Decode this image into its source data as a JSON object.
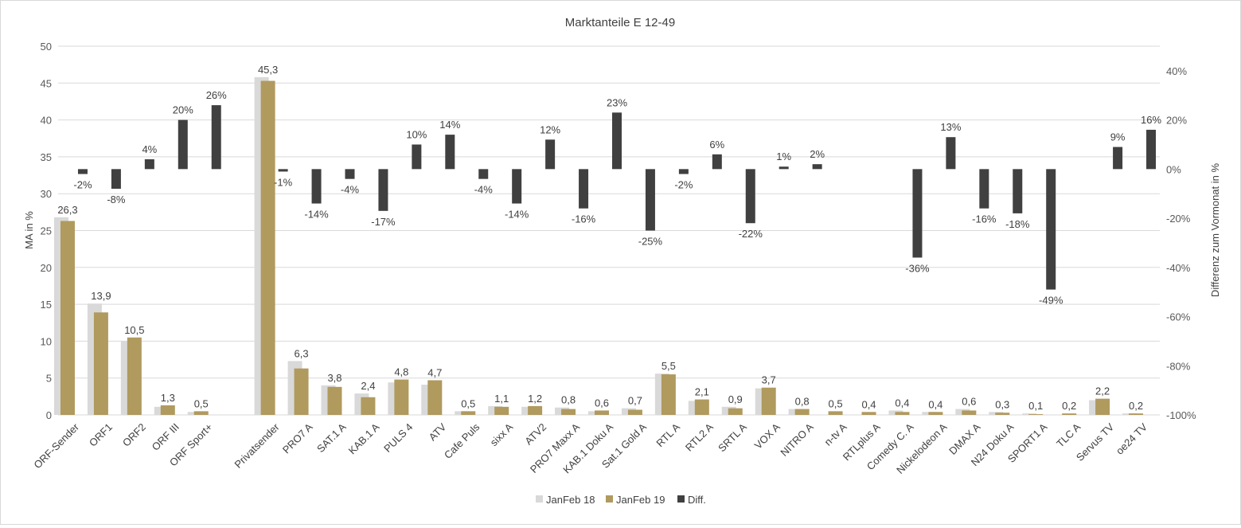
{
  "chart_data": {
    "type": "bar",
    "title": "Marktanteile E 12-49",
    "ylabel": "MA in %",
    "y2label": "Differenz zum Vormonat in %",
    "ylim": [
      0,
      50
    ],
    "yticks": [
      "0",
      "5",
      "10",
      "15",
      "20",
      "25",
      "30",
      "35",
      "40",
      "45",
      "50"
    ],
    "y2lim": [
      -100,
      50
    ],
    "y2ticks": [
      "-100%",
      "-80%",
      "-60%",
      "-40%",
      "-20%",
      "0%",
      "20%",
      "40%"
    ],
    "y2tick_values": [
      -100,
      -80,
      -60,
      -40,
      -20,
      0,
      20,
      40
    ],
    "legend_position": "bottom",
    "grid": true,
    "colors": {
      "JanFeb 18": "#d9d9d9",
      "JanFeb 19": "#b09a5e",
      "Diff.": "#404040"
    },
    "categories": [
      "ORF-Sender",
      "ORF1",
      "ORF2",
      "ORF III",
      "ORF Sport+",
      "",
      "Privatsender",
      "PRO7 A",
      "SAT.1 A",
      "KAB.1 A",
      "PULS 4",
      "ATV",
      "Cafe Puls",
      "sixx A",
      "ATV2",
      "PRO7 Maxx A",
      "KAB.1 Doku A",
      "Sat.1 Gold A",
      "RTL A",
      "RTL2 A",
      "SRTL A",
      "VOX A",
      "NITRO A",
      "n-tv A",
      "RTLplus A",
      "Comedy C. A",
      "Nickelodeon A",
      "DMAX A",
      "N24 Doku A",
      "SPORT1 A",
      "TLC A",
      "Servus TV",
      "oe24 TV"
    ],
    "series": [
      {
        "name": "JanFeb 18",
        "axis": "left",
        "values": [
          26.8,
          15.1,
          10.0,
          1.1,
          0.4,
          null,
          45.8,
          7.3,
          4.0,
          2.9,
          4.4,
          4.1,
          0.5,
          1.2,
          1.1,
          1.0,
          0.5,
          0.9,
          5.6,
          1.9,
          1.1,
          3.6,
          0.8,
          0.0,
          0.0,
          0.6,
          0.4,
          0.8,
          0.4,
          0.2,
          0.0,
          2.0,
          0.2
        ]
      },
      {
        "name": "JanFeb 19",
        "axis": "left",
        "values": [
          26.3,
          13.9,
          10.5,
          1.3,
          0.5,
          null,
          45.3,
          6.3,
          3.8,
          2.4,
          4.8,
          4.7,
          0.5,
          1.1,
          1.2,
          0.8,
          0.6,
          0.7,
          5.5,
          2.1,
          0.9,
          3.7,
          0.8,
          0.5,
          0.4,
          0.4,
          0.4,
          0.6,
          0.3,
          0.1,
          0.2,
          2.2,
          0.2
        ],
        "labels": [
          "26,3",
          "13,9",
          "10,5",
          "1,3",
          "0,5",
          "",
          "45,3",
          "6,3",
          "3,8",
          "2,4",
          "4,8",
          "4,7",
          "0,5",
          "1,1",
          "1,2",
          "0,8",
          "0,6",
          "0,7",
          "5,5",
          "2,1",
          "0,9",
          "3,7",
          "0,8",
          "0,5",
          "0,4",
          "0,4",
          "0,4",
          "0,6",
          "0,3",
          "0,1",
          "0,2",
          "2,2",
          "0,2"
        ]
      },
      {
        "name": "Diff.",
        "axis": "right",
        "values": [
          -2,
          -8,
          4,
          20,
          26,
          null,
          -1,
          -14,
          -4,
          -17,
          10,
          14,
          -4,
          -14,
          12,
          -16,
          23,
          -25,
          -2,
          6,
          -22,
          1,
          2,
          null,
          null,
          -36,
          13,
          -16,
          -18,
          -49,
          null,
          9,
          16
        ],
        "labels": [
          "-2%",
          "-8%",
          "4%",
          "20%",
          "26%",
          "",
          "-1%",
          "-14%",
          "-4%",
          "-17%",
          "10%",
          "14%",
          "-4%",
          "-14%",
          "12%",
          "-16%",
          "23%",
          "-25%",
          "-2%",
          "6%",
          "-22%",
          "1%",
          "2%",
          "",
          "",
          "-36%",
          "13%",
          "-16%",
          "-18%",
          "-49%",
          "",
          "9%",
          "16%"
        ]
      }
    ]
  }
}
